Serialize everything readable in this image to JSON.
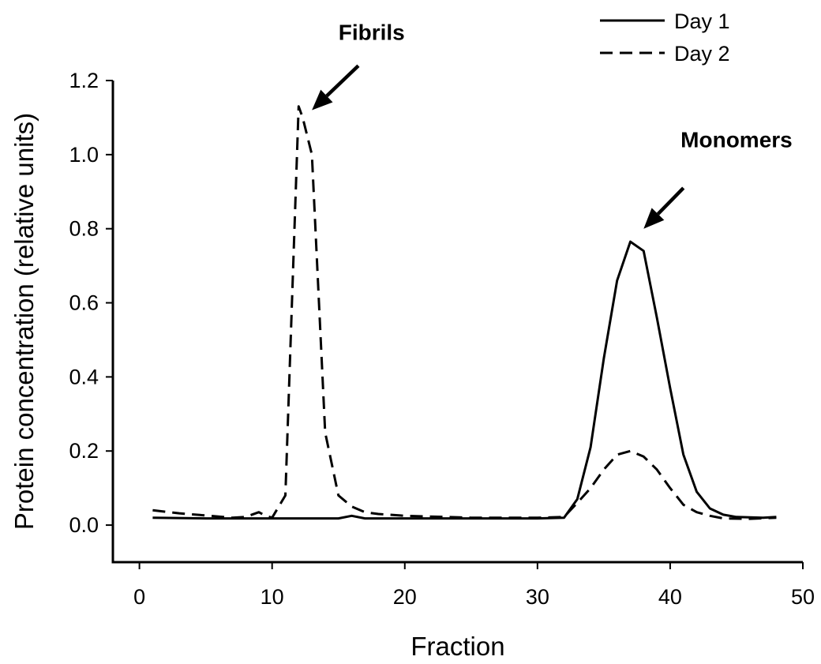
{
  "chart_data": {
    "type": "line",
    "title": "",
    "xlabel": "Fraction",
    "ylabel": "Protein concentration (relative units)",
    "xlim": [
      -2,
      50
    ],
    "ylim": [
      -0.1,
      1.2
    ],
    "xticks": [
      0,
      10,
      20,
      30,
      40,
      50
    ],
    "xtick_labels": [
      "0",
      "10",
      "20",
      "30",
      "40",
      "50"
    ],
    "yticks": [
      0.0,
      0.2,
      0.4,
      0.6,
      0.8,
      1.0,
      1.2
    ],
    "ytick_labels": [
      "0.0",
      "0.2",
      "0.4",
      "0.6",
      "0.8",
      "1.0",
      "1.2"
    ],
    "grid": false,
    "legend": {
      "placement": "top-right"
    },
    "series": [
      {
        "name": "Day 1",
        "style": "solid",
        "color": "#000000",
        "points": [
          [
            1,
            0.02
          ],
          [
            5,
            0.018
          ],
          [
            10,
            0.018
          ],
          [
            15,
            0.018
          ],
          [
            16,
            0.025
          ],
          [
            17,
            0.018
          ],
          [
            20,
            0.018
          ],
          [
            25,
            0.018
          ],
          [
            30,
            0.018
          ],
          [
            32,
            0.02
          ],
          [
            33,
            0.07
          ],
          [
            34,
            0.21
          ],
          [
            35,
            0.45
          ],
          [
            36,
            0.66
          ],
          [
            37,
            0.765
          ],
          [
            38,
            0.74
          ],
          [
            39,
            0.56
          ],
          [
            40,
            0.37
          ],
          [
            41,
            0.19
          ],
          [
            42,
            0.09
          ],
          [
            43,
            0.045
          ],
          [
            44,
            0.028
          ],
          [
            45,
            0.022
          ],
          [
            47,
            0.02
          ],
          [
            48,
            0.022
          ]
        ]
      },
      {
        "name": "Day 2",
        "style": "dashed",
        "color": "#000000",
        "points": [
          [
            1,
            0.04
          ],
          [
            3,
            0.032
          ],
          [
            5,
            0.026
          ],
          [
            7,
            0.02
          ],
          [
            8,
            0.022
          ],
          [
            9,
            0.035
          ],
          [
            9.5,
            0.025
          ],
          [
            10,
            0.02
          ],
          [
            11,
            0.08
          ],
          [
            12,
            1.13
          ],
          [
            12.3,
            1.1
          ],
          [
            13,
            1.0
          ],
          [
            14,
            0.25
          ],
          [
            15,
            0.08
          ],
          [
            16,
            0.05
          ],
          [
            17,
            0.035
          ],
          [
            18,
            0.03
          ],
          [
            20,
            0.025
          ],
          [
            25,
            0.02
          ],
          [
            30,
            0.02
          ],
          [
            32,
            0.022
          ],
          [
            33,
            0.06
          ],
          [
            34,
            0.1
          ],
          [
            35,
            0.15
          ],
          [
            36,
            0.19
          ],
          [
            37,
            0.2
          ],
          [
            38,
            0.185
          ],
          [
            39,
            0.15
          ],
          [
            40,
            0.1
          ],
          [
            41,
            0.055
          ],
          [
            42,
            0.035
          ],
          [
            43,
            0.025
          ],
          [
            44,
            0.018
          ],
          [
            46,
            0.017
          ],
          [
            48,
            0.02
          ]
        ]
      }
    ],
    "annotations": [
      {
        "label": "Fibrils",
        "arrow_tip": [
          13.0,
          1.12
        ],
        "arrow_tail": [
          16.5,
          1.24
        ],
        "label_at": [
          17.5,
          1.31
        ]
      },
      {
        "label": "Monomers",
        "arrow_tip": [
          38.0,
          0.8
        ],
        "arrow_tail": [
          41.0,
          0.91
        ],
        "label_at": [
          45.0,
          1.02
        ]
      }
    ]
  }
}
